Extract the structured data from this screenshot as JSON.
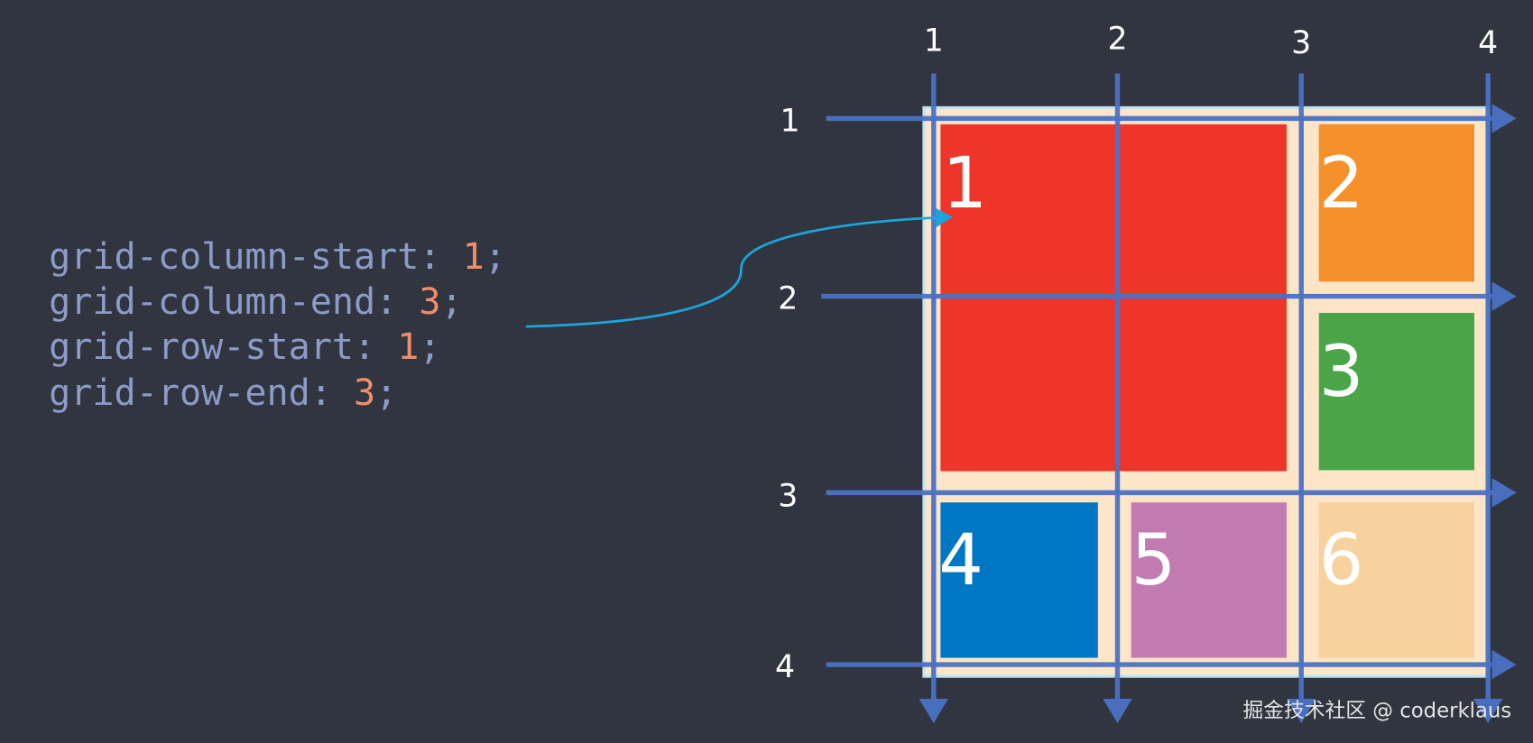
{
  "code": [
    {
      "property": "grid-column-start:",
      "value": "1",
      "end": ";"
    },
    {
      "property": "grid-column-end:",
      "value": "3",
      "end": ";"
    },
    {
      "property": "grid-row-start:",
      "value": "1",
      "end": ";"
    },
    {
      "property": "grid-row-end:",
      "value": "3",
      "end": ";"
    }
  ],
  "column_lines": [
    "1",
    "2",
    "3",
    "4"
  ],
  "row_lines": [
    "1",
    "2",
    "3",
    "4"
  ],
  "cells": [
    {
      "label": "1"
    },
    {
      "label": "2"
    },
    {
      "label": "3"
    },
    {
      "label": "4"
    },
    {
      "label": "5"
    },
    {
      "label": "6"
    }
  ],
  "watermark": "掘金技术社区 @ coderklaus"
}
